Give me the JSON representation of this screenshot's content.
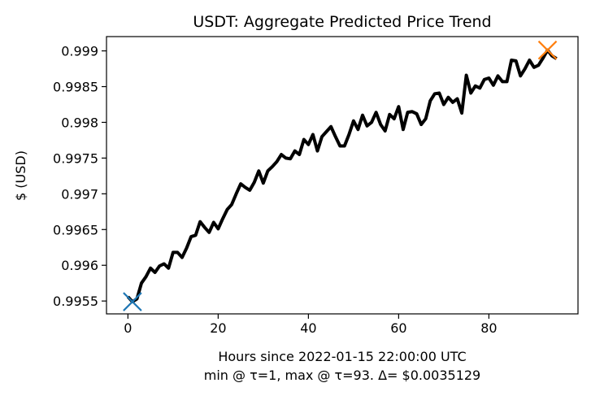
{
  "chart_data": {
    "type": "line",
    "title": "USDT: Aggregate Predicted Price Trend",
    "xlabel": "Hours since 2022-01-15 22:00:00 UTC",
    "xlabel_line2": "min @ τ=1, max @ τ=93. Δ= $0.0035129",
    "ylabel": "$ (USD)",
    "xlim": [
      -4.75,
      99.75
    ],
    "ylim": [
      0.99532,
      0.9992
    ],
    "x_ticks": [
      0,
      20,
      40,
      60,
      80
    ],
    "x_tick_labels": [
      "0",
      "20",
      "40",
      "60",
      "80"
    ],
    "y_ticks": [
      0.9955,
      0.996,
      0.9965,
      0.997,
      0.9975,
      0.998,
      0.9985,
      0.999
    ],
    "y_tick_labels": [
      "0.9955",
      "0.996",
      "0.9965",
      "0.997",
      "0.9975",
      "0.998",
      "0.9985",
      "0.999"
    ],
    "grid": false,
    "series": [
      {
        "color": "#000000",
        "x": [
          0,
          1,
          2,
          3,
          4,
          5,
          6,
          7,
          8,
          9,
          10,
          11,
          12,
          13,
          14,
          15,
          16,
          17,
          18,
          19,
          20,
          21,
          22,
          23,
          24,
          25,
          26,
          27,
          28,
          29,
          30,
          31,
          32,
          33,
          34,
          35,
          36,
          37,
          38,
          39,
          40,
          41,
          42,
          43,
          44,
          45,
          46,
          47,
          48,
          49,
          50,
          51,
          52,
          53,
          54,
          55,
          56,
          57,
          58,
          59,
          60,
          61,
          62,
          63,
          64,
          65,
          66,
          67,
          68,
          69,
          70,
          71,
          72,
          73,
          74,
          75,
          76,
          77,
          78,
          79,
          80,
          81,
          82,
          83,
          84,
          85,
          86,
          87,
          88,
          89,
          90,
          91,
          92,
          93,
          94,
          95
        ],
        "y": [
          0.99556,
          0.99549,
          0.99553,
          0.99575,
          0.99584,
          0.99596,
          0.9959,
          0.99599,
          0.99602,
          0.99596,
          0.99618,
          0.99618,
          0.99611,
          0.99624,
          0.9964,
          0.99642,
          0.99661,
          0.99653,
          0.99646,
          0.9966,
          0.99651,
          0.99665,
          0.99678,
          0.99685,
          0.997,
          0.99714,
          0.99709,
          0.99705,
          0.99716,
          0.99732,
          0.99715,
          0.99732,
          0.99738,
          0.99745,
          0.99755,
          0.9975,
          0.99749,
          0.9976,
          0.99755,
          0.99776,
          0.99769,
          0.99783,
          0.9976,
          0.9978,
          0.99787,
          0.99794,
          0.9978,
          0.99767,
          0.99767,
          0.99783,
          0.99802,
          0.9979,
          0.9981,
          0.99795,
          0.998,
          0.99814,
          0.99797,
          0.99788,
          0.99811,
          0.99805,
          0.99822,
          0.9979,
          0.99814,
          0.99815,
          0.99812,
          0.99797,
          0.99805,
          0.9983,
          0.9984,
          0.99841,
          0.99825,
          0.99835,
          0.99828,
          0.99833,
          0.99813,
          0.99866,
          0.99841,
          0.99851,
          0.99848,
          0.9986,
          0.99862,
          0.99852,
          0.99865,
          0.99857,
          0.99857,
          0.99887,
          0.99886,
          0.99865,
          0.99875,
          0.99887,
          0.99877,
          0.9988,
          0.9989,
          0.99901,
          0.99893,
          0.99889
        ]
      }
    ],
    "markers": [
      {
        "label": "min",
        "x": 1,
        "y": 0.99549,
        "symbol": "x",
        "color": "#1f77b4"
      },
      {
        "label": "max",
        "x": 93,
        "y": 0.99901,
        "symbol": "x",
        "color": "#ff7f0e"
      }
    ]
  }
}
